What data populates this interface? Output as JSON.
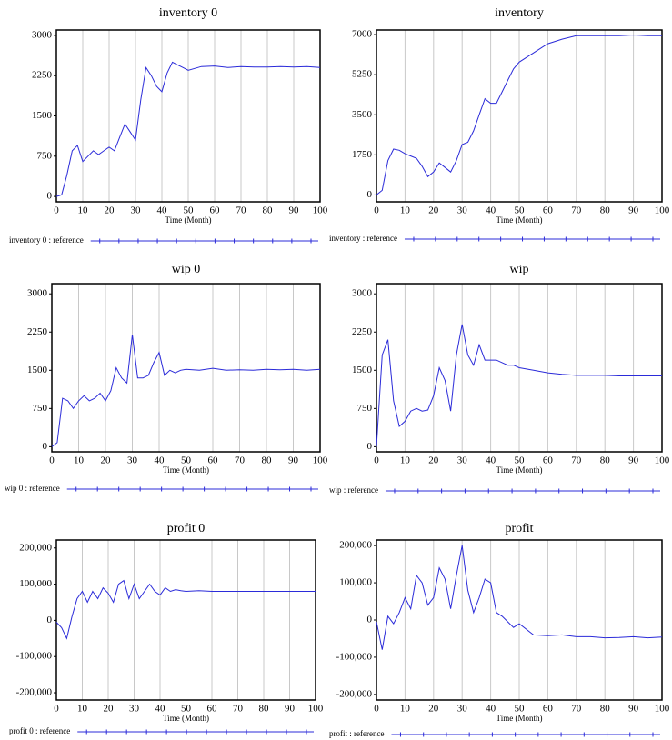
{
  "chart_data": [
    {
      "type": "line",
      "title": "inventory 0",
      "xlabel": "Time (Month)",
      "x": [
        0,
        2,
        4,
        6,
        8,
        10,
        12,
        14,
        16,
        18,
        20,
        22,
        24,
        26,
        28,
        30,
        32,
        34,
        36,
        38,
        40,
        42,
        44,
        46,
        48,
        50,
        55,
        60,
        65,
        70,
        75,
        80,
        85,
        90,
        95,
        100
      ],
      "series": [
        {
          "name": "inventory 0 : reference",
          "color": "#2b2bd9",
          "values": [
            0,
            30,
            400,
            850,
            950,
            650,
            750,
            850,
            780,
            850,
            920,
            850,
            1100,
            1350,
            1200,
            1050,
            1800,
            2400,
            2250,
            2050,
            1950,
            2300,
            2500,
            2450,
            2400,
            2350,
            2420,
            2430,
            2400,
            2420,
            2410,
            2410,
            2420,
            2410,
            2420,
            2400
          ]
        }
      ],
      "xlim": [
        0,
        100
      ],
      "ylim": [
        -100,
        3100
      ],
      "xticks": [
        0,
        10,
        20,
        30,
        40,
        50,
        60,
        70,
        80,
        90,
        100
      ],
      "yticks": [
        0,
        750,
        1500,
        2250,
        3000
      ],
      "grid": true
    },
    {
      "type": "line",
      "title": "inventory",
      "xlabel": "Time (Month)",
      "x": [
        0,
        2,
        4,
        6,
        8,
        10,
        12,
        14,
        16,
        18,
        20,
        22,
        24,
        26,
        28,
        30,
        32,
        34,
        36,
        38,
        40,
        42,
        44,
        46,
        48,
        50,
        55,
        60,
        65,
        70,
        75,
        80,
        85,
        90,
        95,
        100
      ],
      "series": [
        {
          "name": "inventory : reference",
          "color": "#2b2bd9",
          "values": [
            0,
            200,
            1500,
            2000,
            1950,
            1800,
            1700,
            1600,
            1250,
            800,
            1000,
            1400,
            1200,
            1000,
            1500,
            2200,
            2300,
            2800,
            3500,
            4200,
            4000,
            4000,
            4500,
            5000,
            5500,
            5800,
            6200,
            6600,
            6800,
            6950,
            6950,
            6950,
            6950,
            6980,
            6950,
            6950
          ]
        }
      ],
      "xlim": [
        0,
        100
      ],
      "ylim": [
        -300,
        7200
      ],
      "xticks": [
        0,
        10,
        20,
        30,
        40,
        50,
        60,
        70,
        80,
        90,
        100
      ],
      "yticks": [
        0,
        1750,
        3500,
        5250,
        7000
      ],
      "grid": true
    },
    {
      "type": "line",
      "title": "wip 0",
      "xlabel": "Time (Month)",
      "x": [
        0,
        2,
        4,
        6,
        8,
        10,
        12,
        14,
        16,
        18,
        20,
        22,
        24,
        26,
        28,
        30,
        32,
        34,
        36,
        38,
        40,
        42,
        44,
        46,
        48,
        50,
        55,
        60,
        65,
        70,
        75,
        80,
        85,
        90,
        95,
        100
      ],
      "series": [
        {
          "name": "wip 0 : reference",
          "color": "#2b2bd9",
          "values": [
            0,
            80,
            950,
            900,
            750,
            900,
            1000,
            900,
            950,
            1050,
            900,
            1100,
            1550,
            1350,
            1250,
            2200,
            1350,
            1350,
            1400,
            1650,
            1850,
            1400,
            1500,
            1450,
            1500,
            1520,
            1500,
            1540,
            1500,
            1510,
            1500,
            1520,
            1510,
            1520,
            1500,
            1520
          ]
        }
      ],
      "xlim": [
        0,
        100
      ],
      "ylim": [
        -100,
        3200
      ],
      "xticks": [
        0,
        10,
        20,
        30,
        40,
        50,
        60,
        70,
        80,
        90,
        100
      ],
      "yticks": [
        0,
        750,
        1500,
        2250,
        3000
      ],
      "grid": true
    },
    {
      "type": "line",
      "title": "wip",
      "xlabel": "Time (Month)",
      "x": [
        0,
        2,
        4,
        6,
        8,
        10,
        12,
        14,
        16,
        18,
        20,
        22,
        24,
        26,
        28,
        30,
        32,
        34,
        36,
        38,
        40,
        42,
        44,
        46,
        48,
        50,
        55,
        60,
        65,
        70,
        75,
        80,
        85,
        90,
        95,
        100
      ],
      "series": [
        {
          "name": "wip : reference",
          "color": "#2b2bd9",
          "values": [
            0,
            1800,
            2100,
            900,
            400,
            500,
            700,
            750,
            700,
            720,
            1000,
            1550,
            1300,
            700,
            1800,
            2400,
            1800,
            1600,
            2000,
            1700,
            1700,
            1700,
            1650,
            1600,
            1600,
            1550,
            1500,
            1450,
            1420,
            1400,
            1400,
            1400,
            1390,
            1390,
            1390,
            1390
          ]
        }
      ],
      "xlim": [
        0,
        100
      ],
      "ylim": [
        -100,
        3200
      ],
      "xticks": [
        0,
        10,
        20,
        30,
        40,
        50,
        60,
        70,
        80,
        90,
        100
      ],
      "yticks": [
        0,
        750,
        1500,
        2250,
        3000
      ],
      "grid": true
    },
    {
      "type": "line",
      "title": "profit 0",
      "xlabel": "Time (Month)",
      "x": [
        0,
        2,
        4,
        6,
        8,
        10,
        12,
        14,
        16,
        18,
        20,
        22,
        24,
        26,
        28,
        30,
        32,
        34,
        36,
        38,
        40,
        42,
        44,
        46,
        48,
        50,
        55,
        60,
        65,
        70,
        75,
        80,
        85,
        90,
        95,
        100
      ],
      "series": [
        {
          "name": "profit 0 : reference",
          "color": "#2b2bd9",
          "values": [
            -5000,
            -20000,
            -50000,
            10000,
            60000,
            80000,
            50000,
            80000,
            60000,
            90000,
            75000,
            50000,
            100000,
            110000,
            60000,
            100000,
            60000,
            80000,
            100000,
            80000,
            70000,
            90000,
            80000,
            85000,
            82000,
            80000,
            82000,
            80000,
            80000,
            80000,
            80000,
            80000,
            80000,
            80000,
            80000,
            80000
          ]
        }
      ],
      "xlim": [
        0,
        100
      ],
      "ylim": [
        -220000,
        222000
      ],
      "xticks": [
        0,
        10,
        20,
        30,
        40,
        50,
        60,
        70,
        80,
        90,
        100
      ],
      "yticks": [
        {
          "value": -200000,
          "label": "-200,000"
        },
        {
          "value": -100000,
          "label": "-100,000"
        },
        0,
        {
          "value": 100000,
          "label": "100,000"
        },
        {
          "value": 200000,
          "label": "200,000"
        }
      ],
      "grid": true
    },
    {
      "type": "line",
      "title": "profit",
      "xlabel": "Time (Month)",
      "x": [
        0,
        2,
        4,
        6,
        8,
        10,
        12,
        14,
        16,
        18,
        20,
        22,
        24,
        26,
        28,
        30,
        32,
        34,
        36,
        38,
        40,
        42,
        44,
        46,
        48,
        50,
        55,
        60,
        65,
        70,
        75,
        80,
        85,
        90,
        95,
        100
      ],
      "series": [
        {
          "name": "profit : reference",
          "color": "#2b2bd9",
          "values": [
            -5000,
            -80000,
            10000,
            -10000,
            20000,
            60000,
            30000,
            120000,
            100000,
            40000,
            60000,
            140000,
            110000,
            30000,
            120000,
            200000,
            80000,
            20000,
            60000,
            110000,
            100000,
            20000,
            10000,
            -5000,
            -20000,
            -10000,
            -40000,
            -42000,
            -40000,
            -45000,
            -45000,
            -48000,
            -47000,
            -45000,
            -48000,
            -46000
          ]
        }
      ],
      "xlim": [
        0,
        100
      ],
      "ylim": [
        -215000,
        215000
      ],
      "xticks": [
        0,
        10,
        20,
        30,
        40,
        50,
        60,
        70,
        80,
        90,
        100
      ],
      "yticks": [
        {
          "value": -200000,
          "label": "-200,000"
        },
        {
          "value": -100000,
          "label": "-100,000"
        },
        0,
        {
          "value": 100000,
          "label": "100,000"
        },
        {
          "value": 200000,
          "label": "200,000"
        }
      ],
      "grid": true
    }
  ]
}
